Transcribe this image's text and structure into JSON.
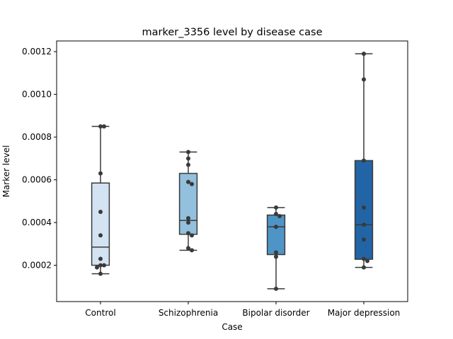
{
  "chart_data": {
    "type": "box",
    "title": "marker_3356 level by disease case",
    "xlabel": "Case",
    "ylabel": "Marker level",
    "ylim": [
      3e-05,
      0.00125
    ],
    "yticks": [
      "0.0002",
      "0.0004",
      "0.0006",
      "0.0008",
      "0.0010",
      "0.0012"
    ],
    "ytick_values": [
      0.0002,
      0.0004,
      0.0006,
      0.0008,
      0.001,
      0.0012
    ],
    "grid": false,
    "legend": "none",
    "categories": [
      "Control",
      "Schizophrenia",
      "Bipolar disorder",
      "Major depression"
    ],
    "colors": [
      "#d3e3f2",
      "#92c0dd",
      "#4f94c6",
      "#2265a6"
    ],
    "boxes": [
      {
        "category": "Control",
        "whisker_low": 0.00016,
        "q1": 0.0002,
        "median": 0.000285,
        "q3": 0.000585,
        "whisker_high": 0.00085
      },
      {
        "category": "Schizophrenia",
        "whisker_low": 0.00027,
        "q1": 0.000345,
        "median": 0.00041,
        "q3": 0.00063,
        "whisker_high": 0.00073
      },
      {
        "category": "Bipolar disorder",
        "whisker_low": 9e-05,
        "q1": 0.00025,
        "median": 0.00038,
        "q3": 0.000435,
        "whisker_high": 0.00047
      },
      {
        "category": "Major depression",
        "whisker_low": 0.00019,
        "q1": 0.000228,
        "median": 0.00039,
        "q3": 0.00069,
        "whisker_high": 0.00119
      }
    ],
    "points": [
      {
        "category": "Control",
        "values": [
          0.00085,
          0.00085,
          0.00063,
          0.00045,
          0.00034,
          0.00023,
          0.0002,
          0.0002,
          0.00019,
          0.00016
        ]
      },
      {
        "category": "Schizophrenia",
        "values": [
          0.00073,
          0.0007,
          0.00067,
          0.00059,
          0.00058,
          0.00042,
          0.0004,
          0.00035,
          0.00034,
          0.00028,
          0.00027
        ]
      },
      {
        "category": "Bipolar disorder",
        "values": [
          0.00047,
          0.00044,
          0.00043,
          0.00038,
          0.00026,
          0.00024,
          9e-05
        ]
      },
      {
        "category": "Major depression",
        "values": [
          0.00119,
          0.00107,
          0.00069,
          0.00047,
          0.00039,
          0.00032,
          0.00023,
          0.00022,
          0.00019
        ]
      }
    ]
  }
}
